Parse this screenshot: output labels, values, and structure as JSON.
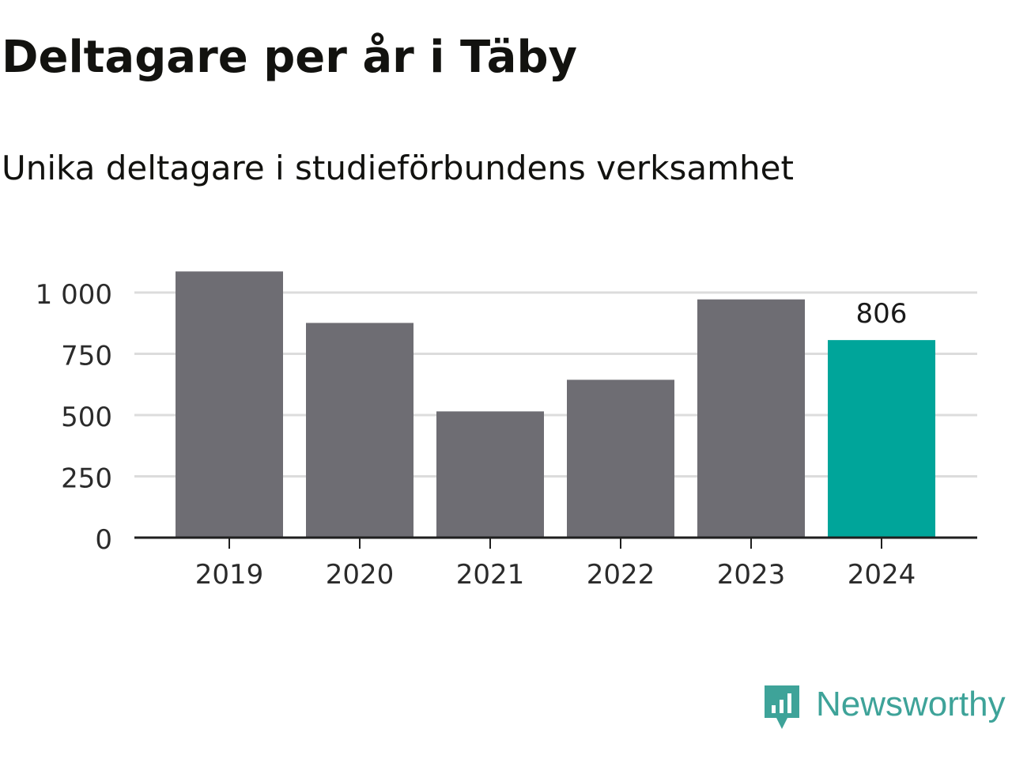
{
  "title": "Deltagare per år i Täby",
  "subtitle": "Unika deltagare i studieförbundens verksamhet",
  "brand": {
    "name": "Newsworthy",
    "logo_icon": "newsworthy-logo-icon",
    "color": "#3ea399"
  },
  "chart_data": {
    "type": "bar",
    "categories": [
      "2019",
      "2020",
      "2021",
      "2022",
      "2023",
      "2024"
    ],
    "values": [
      1086,
      876,
      515,
      644,
      972,
      806
    ],
    "highlight_index": 5,
    "data_labels": [
      {
        "index": 5,
        "text": "806"
      }
    ],
    "ylim": [
      0,
      1000
    ],
    "yticks": [
      {
        "value": 0,
        "label": "0"
      },
      {
        "value": 250,
        "label": "250"
      },
      {
        "value": 500,
        "label": "500"
      },
      {
        "value": 750,
        "label": "750"
      },
      {
        "value": 1000,
        "label": "1 000"
      }
    ],
    "xlabel": "",
    "ylabel": "",
    "grid": true,
    "legend": false,
    "colors": {
      "bar": "#6e6d73",
      "highlight": "#00a59a",
      "grid": "#dcdcdc",
      "axis": "#1f1f1f",
      "text": "#2b2b2b"
    }
  }
}
